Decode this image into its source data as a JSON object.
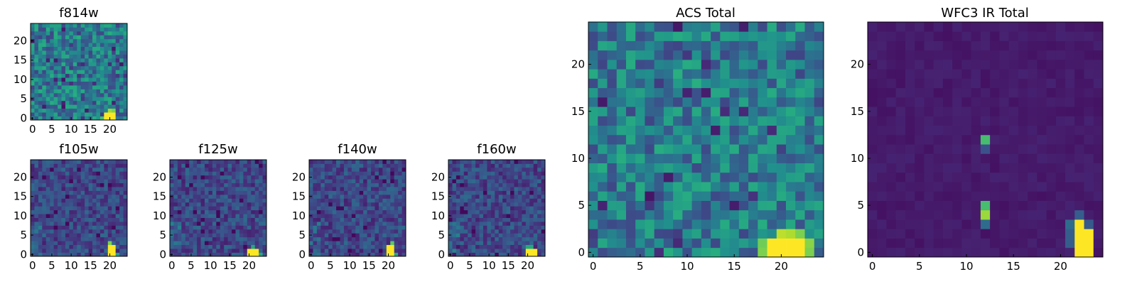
{
  "figure": {
    "background": "#ffffff",
    "colormap": "viridis"
  },
  "chart_data": [
    {
      "id": "f814w",
      "type": "heatmap",
      "title": "f814w",
      "grid_size": 25,
      "xlim": [
        -0.5,
        24.5
      ],
      "ylim": [
        -0.5,
        24.5
      ],
      "xticks": [
        0,
        5,
        10,
        15,
        20
      ],
      "yticks": [
        0,
        5,
        10,
        15,
        20
      ],
      "pattern": "acs",
      "seed": 814,
      "value_range": [
        0,
        1
      ],
      "notes": "bright source at x 19-21, y 0-2"
    },
    {
      "id": "f105w",
      "type": "heatmap",
      "title": "f105w",
      "grid_size": 25,
      "xlim": [
        -0.5,
        24.5
      ],
      "ylim": [
        -0.5,
        24.5
      ],
      "xticks": [
        0,
        5,
        10,
        15,
        20
      ],
      "yticks": [
        0,
        5,
        10,
        15,
        20
      ],
      "pattern": "ir",
      "seed": 105,
      "value_range": [
        0,
        1
      ],
      "notes": "bright source at x 20-21, y 0-3"
    },
    {
      "id": "f125w",
      "type": "heatmap",
      "title": "f125w",
      "grid_size": 25,
      "xlim": [
        -0.5,
        24.5
      ],
      "ylim": [
        -0.5,
        24.5
      ],
      "xticks": [
        0,
        5,
        10,
        15,
        20
      ],
      "yticks": [
        0,
        5,
        10,
        15,
        20
      ],
      "pattern": "ir",
      "seed": 125,
      "value_range": [
        0,
        1
      ],
      "notes": "bright source at x 20-22, y 0-2"
    },
    {
      "id": "f140w",
      "type": "heatmap",
      "title": "f140w",
      "grid_size": 25,
      "xlim": [
        -0.5,
        24.5
      ],
      "ylim": [
        -0.5,
        24.5
      ],
      "xticks": [
        0,
        5,
        10,
        15,
        20
      ],
      "yticks": [
        0,
        5,
        10,
        15,
        20
      ],
      "pattern": "ir",
      "seed": 140,
      "value_range": [
        0,
        1
      ],
      "notes": "bright source at x 20-21, y 0-3"
    },
    {
      "id": "f160w",
      "type": "heatmap",
      "title": "f160w",
      "grid_size": 25,
      "xlim": [
        -0.5,
        24.5
      ],
      "ylim": [
        -0.5,
        24.5
      ],
      "xticks": [
        0,
        5,
        10,
        15,
        20
      ],
      "yticks": [
        0,
        5,
        10,
        15,
        20
      ],
      "pattern": "ir",
      "seed": 160,
      "value_range": [
        0,
        1
      ],
      "notes": "bright source at x 20-22, y 0-2"
    },
    {
      "id": "acs",
      "type": "heatmap",
      "title": "ACS Total",
      "grid_size": 25,
      "xlim": [
        -0.5,
        24.5
      ],
      "ylim": [
        -0.5,
        24.5
      ],
      "xticks": [
        0,
        5,
        10,
        15,
        20
      ],
      "yticks": [
        0,
        5,
        10,
        15,
        20
      ],
      "pattern": "acs",
      "seed": 900,
      "value_range": [
        0,
        1
      ],
      "notes": "bright source at x 19-22, y 0-2"
    },
    {
      "id": "wfc3",
      "type": "heatmap",
      "title": "WFC3 IR Total",
      "grid_size": 25,
      "xlim": [
        -0.5,
        24.5
      ],
      "ylim": [
        -0.5,
        24.5
      ],
      "xticks": [
        0,
        5,
        10,
        15,
        20
      ],
      "yticks": [
        0,
        5,
        10,
        15,
        20
      ],
      "pattern": "wfc3",
      "seed": 333,
      "value_range": [
        0,
        1
      ],
      "notes": "bright cells at x 22-23, y 0-3 and x 12, y 4-5 and x 12, y 12"
    }
  ]
}
